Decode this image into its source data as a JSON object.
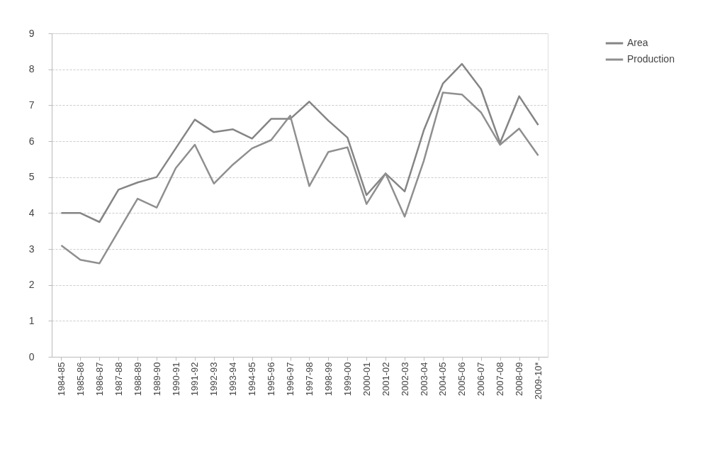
{
  "chart_data": {
    "type": "line",
    "categories": [
      "1984-85",
      "1985-86",
      "1986-87",
      "1987-88",
      "1988-89",
      "1989-90",
      "1990-91",
      "1991-92",
      "1992-93",
      "1993-94",
      "1994-95",
      "1995-96",
      "1996-97",
      "1997-98",
      "1998-99",
      "1999-00",
      "2000-01",
      "2001-02",
      "2002-03",
      "2003-04",
      "2004-05",
      "2005-06",
      "2006-07",
      "2007-08",
      "2008-09",
      "2009-10*"
    ],
    "series": [
      {
        "name": "Area",
        "color": "#858585",
        "values": [
          4.0,
          4.0,
          3.75,
          4.65,
          4.85,
          5.0,
          5.8,
          6.6,
          6.25,
          6.33,
          6.07,
          6.62,
          6.62,
          7.1,
          6.57,
          6.1,
          4.5,
          5.1,
          4.6,
          6.3,
          7.6,
          8.15,
          7.45,
          5.95,
          7.25,
          6.45
        ]
      },
      {
        "name": "Production",
        "color": "#8f8f8f",
        "values": [
          3.1,
          2.7,
          2.6,
          3.5,
          4.4,
          4.15,
          5.25,
          5.9,
          4.82,
          5.35,
          5.8,
          6.03,
          6.71,
          4.75,
          5.7,
          5.83,
          4.25,
          5.1,
          3.9,
          5.45,
          7.35,
          7.3,
          6.8,
          5.9,
          6.35,
          5.6
        ]
      }
    ],
    "ylim": [
      0,
      9
    ],
    "yticks": [
      0,
      1,
      2,
      3,
      4,
      5,
      6,
      7,
      8,
      9
    ],
    "grid": "y",
    "legend": "right",
    "marker": "none",
    "line_style": "solid"
  }
}
